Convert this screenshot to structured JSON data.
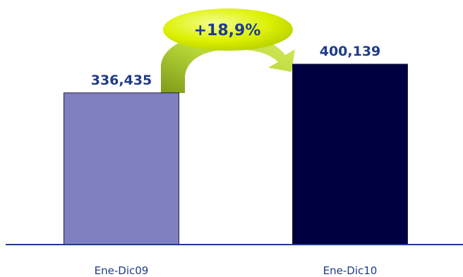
{
  "chart_data": {
    "type": "bar",
    "categories": [
      "Ene-Dic09",
      "Ene-Dic10"
    ],
    "values": [
      336435,
      400139
    ],
    "value_labels": [
      "336,435",
      "400,139"
    ],
    "bar_colors": [
      "#8080c0",
      "#000040"
    ],
    "growth_annotation": "+18,9%",
    "colors": {
      "value_text": "#1f3c88",
      "category_text": "#1f3c88",
      "axis": "#1f3c88",
      "arrow_fill": "#a8c828",
      "ellipse_fill": "#d8f000",
      "growth_text": "#1f3c88"
    }
  }
}
